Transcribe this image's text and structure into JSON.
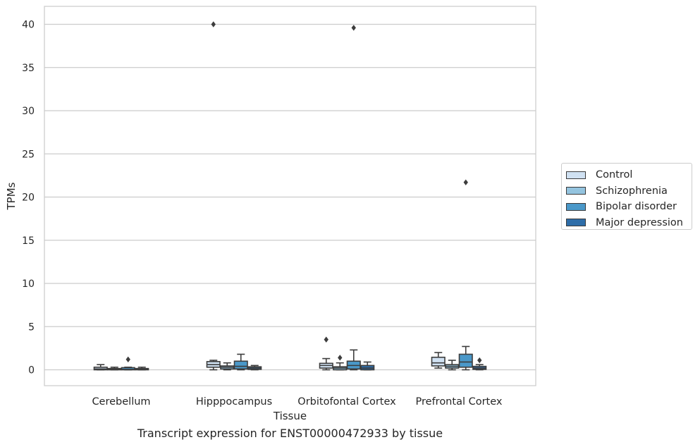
{
  "chart_data": {
    "type": "boxplot",
    "title": "",
    "xlabel": "Tissue",
    "ylabel": "TPMs",
    "ylim": [
      -1.9,
      42.1
    ],
    "yticks": [
      0,
      5,
      10,
      15,
      20,
      25,
      30,
      35,
      40
    ],
    "grid": "horizontal",
    "legend_position": "right",
    "categories": [
      "Cerebellum",
      "Hipppocampus",
      "Orbitofontal Cortex",
      "Prefrontal Cortex"
    ],
    "series": [
      {
        "name": "Control",
        "color": "#d0e1f2",
        "boxes": [
          {
            "whislo": 0.0,
            "q1": 0.0,
            "med": 0.1,
            "q3": 0.3,
            "whishi": 0.6,
            "fliers": []
          },
          {
            "whislo": 0.0,
            "q1": 0.3,
            "med": 0.6,
            "q3": 0.95,
            "whishi": 1.1,
            "fliers": [
              40.0
            ]
          },
          {
            "whislo": 0.0,
            "q1": 0.2,
            "med": 0.5,
            "q3": 0.75,
            "whishi": 1.3,
            "fliers": [
              3.5
            ]
          },
          {
            "whislo": 0.2,
            "q1": 0.45,
            "med": 0.8,
            "q3": 1.45,
            "whishi": 2.0,
            "fliers": []
          }
        ]
      },
      {
        "name": "Schizophrenia",
        "color": "#94c4df",
        "boxes": [
          {
            "whislo": 0.0,
            "q1": 0.0,
            "med": 0.05,
            "q3": 0.15,
            "whishi": 0.3,
            "fliers": []
          },
          {
            "whislo": 0.0,
            "q1": 0.1,
            "med": 0.3,
            "q3": 0.45,
            "whishi": 0.8,
            "fliers": []
          },
          {
            "whislo": 0.0,
            "q1": 0.0,
            "med": 0.2,
            "q3": 0.35,
            "whishi": 0.8,
            "fliers": [
              1.4
            ]
          },
          {
            "whislo": 0.0,
            "q1": 0.2,
            "med": 0.4,
            "q3": 0.6,
            "whishi": 1.1,
            "fliers": []
          }
        ]
      },
      {
        "name": "Bipolar disorder",
        "color": "#4a98c9",
        "boxes": [
          {
            "whislo": 0.0,
            "q1": 0.0,
            "med": 0.05,
            "q3": 0.25,
            "whishi": 0.3,
            "fliers": [
              1.2
            ]
          },
          {
            "whislo": 0.0,
            "q1": 0.1,
            "med": 0.4,
            "q3": 1.0,
            "whishi": 1.8,
            "fliers": []
          },
          {
            "whislo": 0.0,
            "q1": 0.1,
            "med": 0.5,
            "q3": 1.0,
            "whishi": 2.3,
            "fliers": [
              39.6
            ]
          },
          {
            "whislo": 0.0,
            "q1": 0.3,
            "med": 0.9,
            "q3": 1.8,
            "whishi": 2.7,
            "fliers": [
              21.7
            ]
          }
        ]
      },
      {
        "name": "Major depression",
        "color": "#2e6da8",
        "boxes": [
          {
            "whislo": 0.0,
            "q1": 0.0,
            "med": 0.05,
            "q3": 0.15,
            "whishi": 0.3,
            "fliers": []
          },
          {
            "whislo": 0.0,
            "q1": 0.05,
            "med": 0.2,
            "q3": 0.35,
            "whishi": 0.5,
            "fliers": []
          },
          {
            "whislo": 0.0,
            "q1": 0.0,
            "med": 0.2,
            "q3": 0.5,
            "whishi": 0.9,
            "fliers": []
          },
          {
            "whislo": 0.0,
            "q1": 0.05,
            "med": 0.2,
            "q3": 0.4,
            "whishi": 0.6,
            "fliers": [
              1.1
            ]
          }
        ]
      }
    ]
  },
  "caption": "Transcript expression for ENST00000472933 by tissue"
}
